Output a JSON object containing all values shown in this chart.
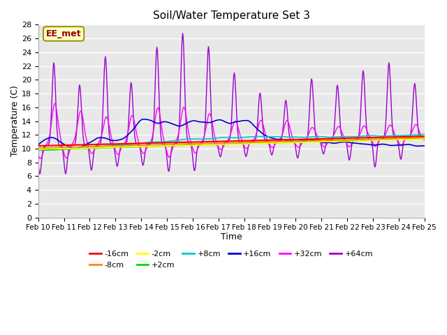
{
  "title": "Soil/Water Temperature Set 3",
  "xlabel": "Time",
  "ylabel": "Temperature (C)",
  "ylim": [
    0,
    28
  ],
  "yticks": [
    0,
    2,
    4,
    6,
    8,
    10,
    12,
    14,
    16,
    18,
    20,
    22,
    24,
    26,
    28
  ],
  "date_labels": [
    "Feb 10",
    "Feb 11",
    "Feb 12",
    "Feb 13",
    "Feb 14",
    "Feb 15",
    "Feb 16",
    "Feb 17",
    "Feb 18",
    "Feb 19",
    "Feb 20",
    "Feb 21",
    "Feb 22",
    "Feb 23",
    "Feb 24",
    "Feb 25"
  ],
  "series_labels": [
    "-16cm",
    "-8cm",
    "-2cm",
    "+2cm",
    "+8cm",
    "+16cm",
    "+32cm",
    "+64cm"
  ],
  "series_colors": [
    "#ff0000",
    "#ff8800",
    "#ffff00",
    "#00dd00",
    "#00cccc",
    "#0000cc",
    "#ff00ff",
    "#9900cc"
  ],
  "legend_label": "EE_met",
  "plot_bg": "#e8e8e8",
  "fig_bg": "#ffffff",
  "n_points": 720
}
